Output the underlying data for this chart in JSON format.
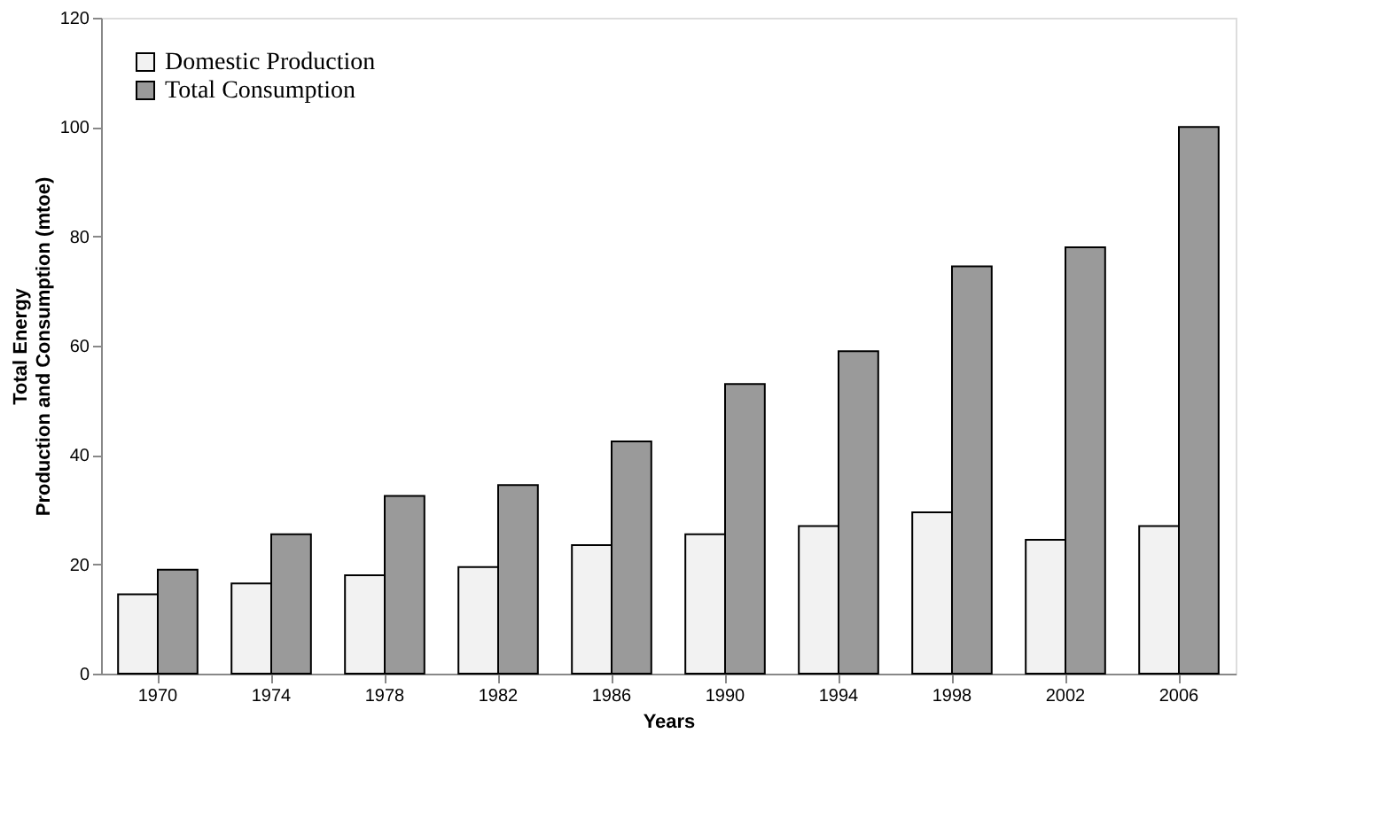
{
  "chart_data": {
    "type": "bar",
    "xlabel": "Years",
    "ylabel": "Total Energy\nProduction and Consumption (mtoe)",
    "categories": [
      "1970",
      "1974",
      "1978",
      "1982",
      "1986",
      "1990",
      "1994",
      "1998",
      "2002",
      "2006"
    ],
    "series": [
      {
        "name": "Domestic  Production",
        "color": "#f2f2f2",
        "values": [
          14.5,
          16.5,
          18,
          19.5,
          23.5,
          25.5,
          27,
          29.5,
          24.5,
          27
        ]
      },
      {
        "name": "Total Consumption",
        "color": "#9a9a9a",
        "values": [
          19,
          25.5,
          32.5,
          34.5,
          42.5,
          53,
          59,
          74.5,
          78,
          100
        ]
      }
    ],
    "ylim": [
      0,
      120
    ],
    "yticks": [
      0,
      20,
      40,
      60,
      80,
      100,
      120
    ],
    "grid": false,
    "legend": "top left"
  }
}
